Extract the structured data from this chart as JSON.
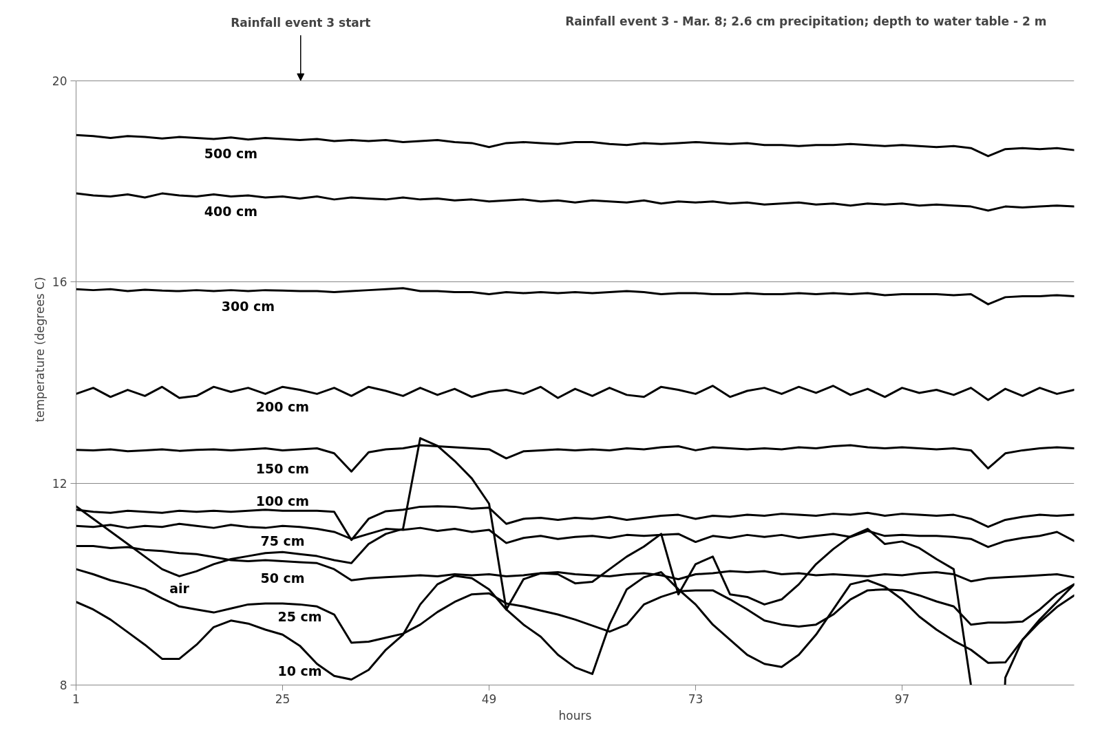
{
  "chart_data": {
    "type": "line",
    "title": "Rainfall event 3 - Mar. 8; 2.6 cm precipitation; depth to water table - 2 m",
    "xlabel": "hours",
    "ylabel": "temperature (degrees C)",
    "annotations": [
      "Rainfall event 3 start"
    ],
    "x": [
      1,
      3,
      5,
      7,
      9,
      11,
      13,
      15,
      17,
      19,
      21,
      23,
      25,
      27,
      29,
      31,
      33,
      35,
      37,
      39,
      41,
      43,
      45,
      47,
      49,
      51,
      53,
      55,
      57,
      59,
      61,
      63,
      65,
      67,
      69,
      71,
      73,
      75,
      77,
      79,
      81,
      83,
      85,
      87,
      89,
      91,
      93,
      95,
      97,
      99,
      101,
      103,
      105,
      107,
      109,
      111,
      113,
      115,
      117
    ],
    "xlim": [
      1,
      117
    ],
    "xticks": [
      1,
      25,
      49,
      73,
      97
    ],
    "ylim": [
      8,
      20
    ],
    "yticks": [
      8,
      12,
      16,
      20
    ],
    "grid": "y",
    "marker": "none",
    "line_style": "solid",
    "series": [
      {
        "name": "500 cm",
        "color": "#000000",
        "values": [
          18.92,
          18.9,
          18.86,
          18.9,
          18.88,
          18.85,
          18.88,
          18.86,
          18.84,
          18.87,
          18.83,
          18.86,
          18.84,
          18.82,
          18.84,
          18.8,
          18.82,
          18.8,
          18.82,
          18.78,
          18.8,
          18.82,
          18.78,
          18.76,
          18.68,
          18.76,
          18.78,
          18.76,
          18.74,
          18.78,
          18.78,
          18.74,
          18.72,
          18.76,
          18.74,
          18.76,
          18.78,
          18.76,
          18.74,
          18.76,
          18.72,
          18.72,
          18.7,
          18.72,
          18.72,
          18.74,
          18.72,
          18.7,
          18.72,
          18.7,
          18.68,
          18.7,
          18.66,
          18.5,
          18.64,
          18.66,
          18.64,
          18.66,
          18.62
        ]
      },
      {
        "name": "400 cm",
        "color": "#000000",
        "values": [
          17.76,
          17.72,
          17.7,
          17.74,
          17.68,
          17.76,
          17.72,
          17.7,
          17.74,
          17.7,
          17.72,
          17.68,
          17.7,
          17.66,
          17.7,
          17.64,
          17.68,
          17.66,
          17.64,
          17.68,
          17.64,
          17.66,
          17.62,
          17.64,
          17.6,
          17.62,
          17.64,
          17.6,
          17.62,
          17.58,
          17.62,
          17.6,
          17.58,
          17.62,
          17.56,
          17.6,
          17.58,
          17.6,
          17.56,
          17.58,
          17.54,
          17.56,
          17.58,
          17.54,
          17.56,
          17.52,
          17.56,
          17.54,
          17.56,
          17.52,
          17.54,
          17.52,
          17.5,
          17.42,
          17.5,
          17.48,
          17.5,
          17.52,
          17.5
        ]
      },
      {
        "name": "300 cm",
        "color": "#000000",
        "values": [
          15.86,
          15.84,
          15.86,
          15.82,
          15.85,
          15.83,
          15.82,
          15.84,
          15.82,
          15.84,
          15.82,
          15.84,
          15.83,
          15.82,
          15.82,
          15.8,
          15.82,
          15.84,
          15.86,
          15.88,
          15.82,
          15.82,
          15.8,
          15.8,
          15.76,
          15.8,
          15.78,
          15.8,
          15.78,
          15.8,
          15.78,
          15.8,
          15.82,
          15.8,
          15.76,
          15.78,
          15.78,
          15.76,
          15.76,
          15.78,
          15.76,
          15.76,
          15.78,
          15.76,
          15.78,
          15.76,
          15.78,
          15.74,
          15.76,
          15.76,
          15.76,
          15.74,
          15.76,
          15.56,
          15.7,
          15.72,
          15.72,
          15.74,
          15.72
        ]
      },
      {
        "name": "200 cm",
        "color": "#000000",
        "values": [
          13.78,
          13.9,
          13.72,
          13.86,
          13.74,
          13.92,
          13.7,
          13.74,
          13.92,
          13.82,
          13.9,
          13.78,
          13.92,
          13.86,
          13.78,
          13.9,
          13.74,
          13.92,
          13.84,
          13.74,
          13.9,
          13.76,
          13.88,
          13.72,
          13.82,
          13.86,
          13.78,
          13.92,
          13.7,
          13.88,
          13.74,
          13.9,
          13.76,
          13.72,
          13.92,
          13.86,
          13.78,
          13.94,
          13.72,
          13.84,
          13.9,
          13.78,
          13.92,
          13.8,
          13.94,
          13.76,
          13.88,
          13.72,
          13.9,
          13.8,
          13.86,
          13.76,
          13.9,
          13.66,
          13.88,
          13.74,
          13.9,
          13.78,
          13.86
        ]
      },
      {
        "name": "150 cm",
        "color": "#000000",
        "values": [
          12.67,
          12.66,
          12.68,
          12.64,
          12.66,
          12.68,
          12.65,
          12.67,
          12.68,
          12.66,
          12.68,
          12.7,
          12.66,
          12.68,
          12.7,
          12.6,
          12.24,
          12.62,
          12.68,
          12.7,
          12.76,
          12.74,
          12.72,
          12.7,
          12.68,
          12.5,
          12.64,
          12.66,
          12.68,
          12.66,
          12.68,
          12.66,
          12.7,
          12.68,
          12.72,
          12.74,
          12.66,
          12.72,
          12.7,
          12.68,
          12.7,
          12.68,
          12.72,
          12.7,
          12.74,
          12.76,
          12.72,
          12.7,
          12.72,
          12.7,
          12.68,
          12.7,
          12.66,
          12.3,
          12.6,
          12.66,
          12.7,
          12.72,
          12.7
        ]
      },
      {
        "name": "100 cm",
        "color": "#000000",
        "values": [
          11.48,
          11.44,
          11.42,
          11.46,
          11.44,
          11.42,
          11.46,
          11.44,
          11.46,
          11.44,
          11.46,
          11.48,
          11.46,
          11.46,
          11.46,
          11.44,
          10.88,
          11.3,
          11.45,
          11.48,
          11.54,
          11.55,
          11.54,
          11.5,
          11.52,
          11.2,
          11.3,
          11.32,
          11.28,
          11.32,
          11.3,
          11.34,
          11.28,
          11.32,
          11.36,
          11.38,
          11.3,
          11.36,
          11.34,
          11.38,
          11.36,
          11.4,
          11.38,
          11.36,
          11.4,
          11.38,
          11.42,
          11.36,
          11.4,
          11.38,
          11.36,
          11.38,
          11.3,
          11.14,
          11.28,
          11.34,
          11.38,
          11.36,
          11.38
        ]
      },
      {
        "name": "75 cm",
        "color": "#000000",
        "values": [
          11.16,
          11.14,
          11.18,
          11.12,
          11.16,
          11.14,
          11.2,
          11.16,
          11.12,
          11.18,
          11.14,
          11.12,
          11.16,
          11.14,
          11.1,
          11.04,
          10.9,
          11.0,
          11.1,
          11.08,
          11.12,
          11.06,
          11.1,
          11.04,
          11.08,
          10.82,
          10.92,
          10.96,
          10.9,
          10.94,
          10.96,
          10.92,
          10.98,
          10.96,
          10.98,
          11.0,
          10.84,
          10.96,
          10.92,
          10.98,
          10.94,
          10.98,
          10.92,
          10.96,
          11.0,
          10.94,
          11.06,
          10.96,
          10.98,
          10.96,
          10.96,
          10.94,
          10.9,
          10.74,
          10.86,
          10.92,
          10.96,
          11.04,
          10.86
        ]
      },
      {
        "name": "50 cm",
        "color": "#000000",
        "values": [
          10.76,
          10.76,
          10.72,
          10.74,
          10.68,
          10.66,
          10.62,
          10.6,
          10.54,
          10.48,
          10.46,
          10.48,
          10.46,
          10.44,
          10.42,
          10.3,
          10.08,
          10.12,
          10.14,
          10.16,
          10.18,
          10.16,
          10.2,
          10.18,
          10.2,
          10.16,
          10.18,
          10.22,
          10.24,
          10.2,
          10.18,
          10.16,
          10.2,
          10.22,
          10.18,
          10.1,
          10.2,
          10.22,
          10.26,
          10.24,
          10.26,
          10.2,
          10.22,
          10.18,
          10.2,
          10.18,
          10.16,
          10.2,
          10.18,
          10.22,
          10.24,
          10.2,
          10.06,
          10.12,
          10.14,
          10.16,
          10.18,
          10.2,
          10.14
        ]
      },
      {
        "name": "25 cm",
        "color": "#000000",
        "values": [
          10.3,
          10.2,
          10.08,
          10.0,
          9.9,
          9.72,
          9.56,
          9.5,
          9.44,
          9.52,
          9.6,
          9.62,
          9.62,
          9.6,
          9.56,
          9.4,
          8.84,
          8.86,
          8.94,
          9.02,
          9.2,
          9.45,
          9.65,
          9.8,
          9.82,
          9.62,
          9.56,
          9.48,
          9.4,
          9.3,
          9.18,
          9.06,
          9.2,
          9.6,
          9.75,
          9.86,
          9.88,
          9.88,
          9.7,
          9.5,
          9.28,
          9.2,
          9.16,
          9.2,
          9.4,
          9.7,
          9.88,
          9.9,
          9.88,
          9.78,
          9.66,
          9.56,
          9.2,
          9.24,
          9.24,
          9.26,
          9.5,
          9.8,
          10.0
        ]
      },
      {
        "name": "10 cm",
        "color": "#000000",
        "values": [
          9.65,
          9.5,
          9.3,
          9.05,
          8.8,
          8.52,
          8.52,
          8.8,
          9.15,
          9.28,
          9.22,
          9.1,
          9.0,
          8.78,
          8.42,
          8.18,
          8.11,
          8.3,
          8.7,
          9.0,
          9.6,
          10.0,
          10.17,
          10.12,
          9.9,
          9.5,
          9.2,
          8.96,
          8.6,
          8.35,
          8.22,
          9.2,
          9.9,
          10.14,
          10.24,
          9.9,
          9.6,
          9.2,
          8.9,
          8.6,
          8.42,
          8.36,
          8.6,
          9.0,
          9.5,
          10.0,
          10.08,
          9.95,
          9.7,
          9.36,
          9.1,
          8.88,
          8.7,
          8.44,
          8.45,
          8.9,
          9.3,
          9.65,
          10.0
        ]
      },
      {
        "name": "air",
        "color": "#000000",
        "values": [
          11.55,
          11.3,
          11.05,
          10.8,
          10.55,
          10.3,
          10.16,
          10.26,
          10.4,
          10.5,
          10.56,
          10.62,
          10.64,
          10.6,
          10.56,
          10.48,
          10.42,
          10.8,
          11.0,
          11.1,
          12.9,
          12.75,
          12.45,
          12.1,
          11.6,
          9.5,
          10.1,
          10.22,
          10.2,
          10.02,
          10.05,
          10.3,
          10.55,
          10.75,
          11.0,
          9.8,
          10.4,
          10.55,
          9.8,
          9.75,
          9.6,
          9.7,
          10.0,
          10.4,
          10.7,
          10.95,
          11.1,
          10.8,
          10.85,
          10.72,
          10.5,
          10.3,
          8.0,
          null,
          8.15,
          8.9,
          9.25,
          9.55,
          9.78
        ]
      }
    ]
  }
}
